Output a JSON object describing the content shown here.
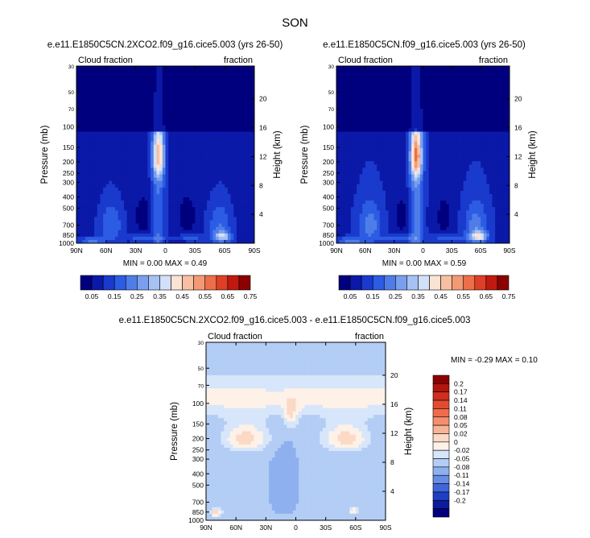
{
  "page": {
    "season": "SON",
    "panel_titles": [
      "e.e11.E1850C5CN.2XCO2.f09_g16.cice5.003 (yrs 26-50)",
      "e.e11.E1850C5CN.f09_g16.cice5.003 (yrs 26-50)",
      "e.e11.E1850C5CN.2XCO2.f09_g16.cice5.003 - e.e11.E1850C5CN.f09_g16.cice5.003"
    ],
    "left_label": "Cloud fraction",
    "right_label": "fraction",
    "ylabel_left": "Pressure (mb)",
    "ylabel_right": "Height (km)"
  },
  "chart_data": [
    {
      "type": "heatmap",
      "title": "e.e11.E1850C5CN.2XCO2.f09_g16.cice5.003 (yrs 26-50)",
      "x_ticks": [
        "90N",
        "60N",
        "30N",
        "0",
        "30S",
        "60S",
        "90S"
      ],
      "x_values": [
        90,
        60,
        30,
        0,
        -30,
        -60,
        -90
      ],
      "p_ticks": [
        30,
        50,
        70,
        100,
        150,
        200,
        250,
        300,
        400,
        500,
        700,
        850,
        1000
      ],
      "p_tick_labels": [
        "30",
        "50",
        "70",
        "100",
        "150",
        "200",
        "250",
        "300",
        "400",
        "500",
        "700",
        "850",
        "1000"
      ],
      "height_ticks": [
        4,
        8,
        12,
        16,
        20
      ],
      "ylim_pressure": [
        1000,
        30
      ],
      "min_text": "MIN =   0.00",
      "max_text": "MAX =    0.49",
      "min": 0.0,
      "max": 0.49,
      "colorbar_labels": [
        "0.05",
        "0.15",
        "0.25",
        "0.35",
        "0.45",
        "0.55",
        "0.65",
        "0.75"
      ],
      "colorbar_colors": [
        "#00007f",
        "#0b19a8",
        "#1a3acd",
        "#2c5ce4",
        "#4f7de8",
        "#7a9fee",
        "#a6c2f4",
        "#d2e0f9",
        "#fbe3d4",
        "#f7c0a3",
        "#f39a75",
        "#ec6f49",
        "#de3f26",
        "#c01a10",
        "#8b0000"
      ]
    },
    {
      "type": "heatmap",
      "title": "e.e11.E1850C5CN.f09_g16.cice5.003 (yrs 26-50)",
      "x_ticks": [
        "90N",
        "60N",
        "30N",
        "0",
        "30S",
        "60S",
        "90S"
      ],
      "x_values": [
        90,
        60,
        30,
        0,
        -30,
        -60,
        -90
      ],
      "p_ticks": [
        30,
        50,
        70,
        100,
        150,
        200,
        250,
        300,
        400,
        500,
        700,
        850,
        1000
      ],
      "p_tick_labels": [
        "30",
        "50",
        "70",
        "100",
        "150",
        "200",
        "250",
        "300",
        "400",
        "500",
        "700",
        "850",
        "1000"
      ],
      "height_ticks": [
        4,
        8,
        12,
        16,
        20
      ],
      "ylim_pressure": [
        1000,
        30
      ],
      "min_text": "MIN =   0.00",
      "max_text": "MAX =    0.59",
      "min": 0.0,
      "max": 0.59,
      "colorbar_labels": [
        "0.05",
        "0.15",
        "0.25",
        "0.35",
        "0.45",
        "0.55",
        "0.65",
        "0.75"
      ],
      "colorbar_colors": [
        "#00007f",
        "#0b19a8",
        "#1a3acd",
        "#2c5ce4",
        "#4f7de8",
        "#7a9fee",
        "#a6c2f4",
        "#d2e0f9",
        "#fbe3d4",
        "#f7c0a3",
        "#f39a75",
        "#ec6f49",
        "#de3f26",
        "#c01a10",
        "#8b0000"
      ]
    },
    {
      "type": "heatmap",
      "title": "e.e11.E1850C5CN.2XCO2.f09_g16.cice5.003 - e.e11.E1850C5CN.f09_g16.cice5.003",
      "x_ticks": [
        "90N",
        "60N",
        "30N",
        "0",
        "30S",
        "60S",
        "90S"
      ],
      "x_values": [
        90,
        60,
        30,
        0,
        -30,
        -60,
        -90
      ],
      "p_ticks": [
        30,
        50,
        70,
        100,
        150,
        200,
        250,
        300,
        400,
        500,
        700,
        850,
        1000
      ],
      "p_tick_labels": [
        "30",
        "50",
        "70",
        "100",
        "150",
        "200",
        "250",
        "300",
        "400",
        "500",
        "700",
        "850",
        "1000"
      ],
      "height_ticks": [
        4,
        8,
        12,
        16,
        20
      ],
      "ylim_pressure": [
        1000,
        30
      ],
      "min_text": "MIN =  -0.29",
      "max_text": "MAX =    0.10",
      "min": -0.29,
      "max": 0.1,
      "colorbar_labels": [
        "0.2",
        "0.17",
        "0.14",
        "0.11",
        "0.08",
        "0.05",
        "0.02",
        "0",
        "-0.02",
        "-0.05",
        "-0.08",
        "-0.11",
        "-0.14",
        "-0.17",
        "-0.2"
      ],
      "colorbar_colors": [
        "#8b0000",
        "#b2150c",
        "#cf2f1c",
        "#e34b31",
        "#ee6c4c",
        "#f48f6e",
        "#f8b497",
        "#fcd9c4",
        "#fdf1e8",
        "#d7e6fa",
        "#b3cdf5",
        "#8eb0ef",
        "#678de6",
        "#3f66d9",
        "#1d3fc3",
        "#0a1c9c",
        "#00007f"
      ]
    }
  ]
}
